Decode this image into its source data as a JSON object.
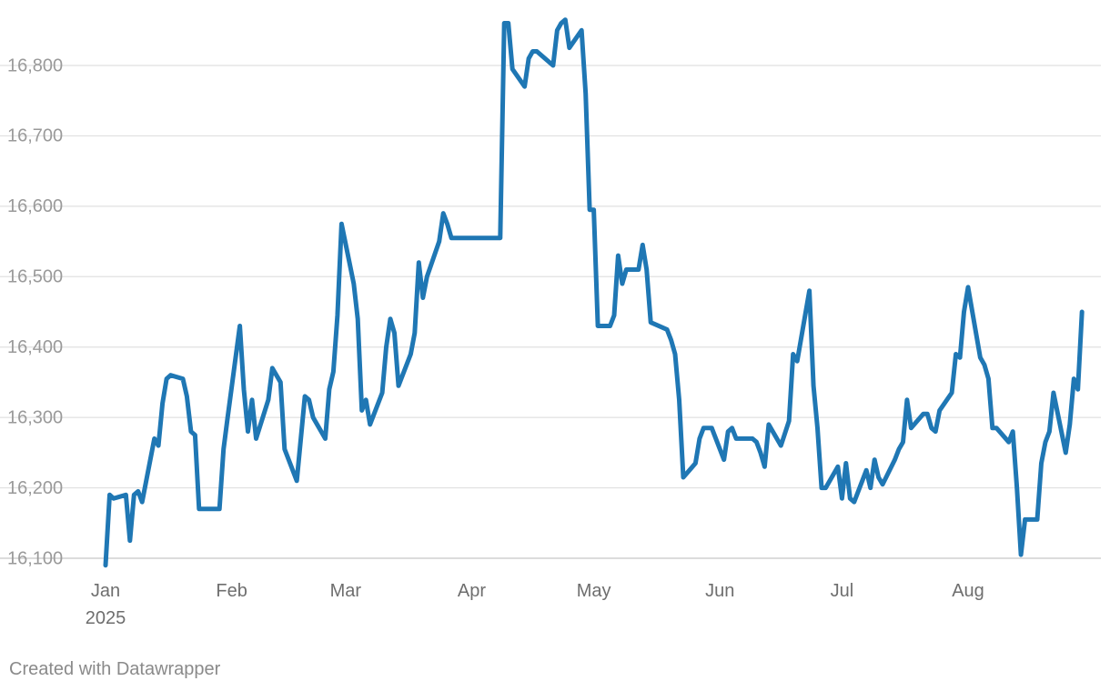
{
  "footer": {
    "credit": "Created with Datawrapper"
  },
  "colors": {
    "line": "#1f77b4",
    "grid": "#e0e0e0"
  },
  "chart_data": {
    "type": "line",
    "title": "",
    "xlabel": "",
    "ylabel": "",
    "grid": true,
    "legend": "none",
    "ylim": [
      16085,
      16870
    ],
    "xlim": [
      "2025-01-01",
      "2025-08-31"
    ],
    "y_ticks": [
      16100,
      16200,
      16300,
      16400,
      16500,
      16600,
      16700,
      16800
    ],
    "y_tick_labels": [
      "16,100",
      "16,200",
      "16,300",
      "16,400",
      "16,500",
      "16,600",
      "16,700",
      "16,800"
    ],
    "x_ticks": [
      {
        "date": "2025-01-01",
        "label": "Jan",
        "sublabel": "2025"
      },
      {
        "date": "2025-02-01",
        "label": "Feb"
      },
      {
        "date": "2025-03-01",
        "label": "Mar"
      },
      {
        "date": "2025-04-01",
        "label": "Apr"
      },
      {
        "date": "2025-05-01",
        "label": "May"
      },
      {
        "date": "2025-06-01",
        "label": "Jun"
      },
      {
        "date": "2025-07-01",
        "label": "Jul"
      },
      {
        "date": "2025-08-01",
        "label": "Aug"
      }
    ],
    "series": [
      {
        "color": "#1f77b4",
        "points": [
          [
            "2025-01-01",
            16090
          ],
          [
            "2025-01-02",
            16190
          ],
          [
            "2025-01-03",
            16185
          ],
          [
            "2025-01-06",
            16190
          ],
          [
            "2025-01-07",
            16125
          ],
          [
            "2025-01-08",
            16190
          ],
          [
            "2025-01-09",
            16195
          ],
          [
            "2025-01-10",
            16180
          ],
          [
            "2025-01-13",
            16270
          ],
          [
            "2025-01-14",
            16260
          ],
          [
            "2025-01-15",
            16320
          ],
          [
            "2025-01-16",
            16355
          ],
          [
            "2025-01-17",
            16360
          ],
          [
            "2025-01-20",
            16355
          ],
          [
            "2025-01-21",
            16330
          ],
          [
            "2025-01-22",
            16280
          ],
          [
            "2025-01-23",
            16275
          ],
          [
            "2025-01-24",
            16170
          ],
          [
            "2025-01-29",
            16170
          ],
          [
            "2025-01-30",
            16255
          ],
          [
            "2025-01-31",
            16300
          ],
          [
            "2025-02-03",
            16430
          ],
          [
            "2025-02-04",
            16340
          ],
          [
            "2025-02-05",
            16280
          ],
          [
            "2025-02-06",
            16325
          ],
          [
            "2025-02-07",
            16270
          ],
          [
            "2025-02-10",
            16325
          ],
          [
            "2025-02-11",
            16370
          ],
          [
            "2025-02-13",
            16350
          ],
          [
            "2025-02-14",
            16255
          ],
          [
            "2025-02-17",
            16210
          ],
          [
            "2025-02-19",
            16330
          ],
          [
            "2025-02-20",
            16325
          ],
          [
            "2025-02-21",
            16300
          ],
          [
            "2025-02-24",
            16270
          ],
          [
            "2025-02-25",
            16340
          ],
          [
            "2025-02-26",
            16365
          ],
          [
            "2025-02-27",
            16445
          ],
          [
            "2025-02-28",
            16575
          ],
          [
            "2025-03-03",
            16490
          ],
          [
            "2025-03-04",
            16440
          ],
          [
            "2025-03-05",
            16310
          ],
          [
            "2025-03-06",
            16325
          ],
          [
            "2025-03-07",
            16290
          ],
          [
            "2025-03-10",
            16335
          ],
          [
            "2025-03-11",
            16400
          ],
          [
            "2025-03-12",
            16440
          ],
          [
            "2025-03-13",
            16420
          ],
          [
            "2025-03-14",
            16345
          ],
          [
            "2025-03-17",
            16390
          ],
          [
            "2025-03-18",
            16420
          ],
          [
            "2025-03-19",
            16520
          ],
          [
            "2025-03-20",
            16470
          ],
          [
            "2025-03-21",
            16500
          ],
          [
            "2025-03-24",
            16550
          ],
          [
            "2025-03-25",
            16590
          ],
          [
            "2025-03-26",
            16575
          ],
          [
            "2025-03-27",
            16555
          ],
          [
            "2025-04-08",
            16555
          ],
          [
            "2025-04-09",
            16860
          ],
          [
            "2025-04-10",
            16860
          ],
          [
            "2025-04-11",
            16795
          ],
          [
            "2025-04-14",
            16770
          ],
          [
            "2025-04-15",
            16810
          ],
          [
            "2025-04-16",
            16820
          ],
          [
            "2025-04-17",
            16820
          ],
          [
            "2025-04-21",
            16800
          ],
          [
            "2025-04-22",
            16850
          ],
          [
            "2025-04-23",
            16860
          ],
          [
            "2025-04-24",
            16865
          ],
          [
            "2025-04-25",
            16825
          ],
          [
            "2025-04-28",
            16850
          ],
          [
            "2025-04-29",
            16760
          ],
          [
            "2025-04-30",
            16595
          ],
          [
            "2025-05-01",
            16595
          ],
          [
            "2025-05-02",
            16430
          ],
          [
            "2025-05-05",
            16430
          ],
          [
            "2025-05-06",
            16445
          ],
          [
            "2025-05-07",
            16530
          ],
          [
            "2025-05-08",
            16490
          ],
          [
            "2025-05-09",
            16510
          ],
          [
            "2025-05-12",
            16510
          ],
          [
            "2025-05-13",
            16545
          ],
          [
            "2025-05-14",
            16510
          ],
          [
            "2025-05-15",
            16435
          ],
          [
            "2025-05-19",
            16425
          ],
          [
            "2025-05-20",
            16410
          ],
          [
            "2025-05-21",
            16390
          ],
          [
            "2025-05-22",
            16325
          ],
          [
            "2025-05-23",
            16215
          ],
          [
            "2025-05-26",
            16235
          ],
          [
            "2025-05-27",
            16270
          ],
          [
            "2025-05-28",
            16285
          ],
          [
            "2025-05-30",
            16285
          ],
          [
            "2025-06-02",
            16240
          ],
          [
            "2025-06-03",
            16280
          ],
          [
            "2025-06-04",
            16285
          ],
          [
            "2025-06-05",
            16270
          ],
          [
            "2025-06-09",
            16270
          ],
          [
            "2025-06-10",
            16265
          ],
          [
            "2025-06-11",
            16250
          ],
          [
            "2025-06-12",
            16230
          ],
          [
            "2025-06-13",
            16290
          ],
          [
            "2025-06-16",
            16260
          ],
          [
            "2025-06-18",
            16295
          ],
          [
            "2025-06-19",
            16390
          ],
          [
            "2025-06-20",
            16380
          ],
          [
            "2025-06-23",
            16480
          ],
          [
            "2025-06-24",
            16345
          ],
          [
            "2025-06-25",
            16285
          ],
          [
            "2025-06-26",
            16200
          ],
          [
            "2025-06-27",
            16200
          ],
          [
            "2025-06-30",
            16230
          ],
          [
            "2025-07-01",
            16185
          ],
          [
            "2025-07-02",
            16235
          ],
          [
            "2025-07-03",
            16185
          ],
          [
            "2025-07-04",
            16180
          ],
          [
            "2025-07-07",
            16225
          ],
          [
            "2025-07-08",
            16200
          ],
          [
            "2025-07-09",
            16240
          ],
          [
            "2025-07-10",
            16215
          ],
          [
            "2025-07-11",
            16205
          ],
          [
            "2025-07-14",
            16240
          ],
          [
            "2025-07-15",
            16255
          ],
          [
            "2025-07-16",
            16265
          ],
          [
            "2025-07-17",
            16325
          ],
          [
            "2025-07-18",
            16285
          ],
          [
            "2025-07-21",
            16305
          ],
          [
            "2025-07-22",
            16305
          ],
          [
            "2025-07-23",
            16285
          ],
          [
            "2025-07-24",
            16280
          ],
          [
            "2025-07-25",
            16310
          ],
          [
            "2025-07-28",
            16335
          ],
          [
            "2025-07-29",
            16390
          ],
          [
            "2025-07-30",
            16385
          ],
          [
            "2025-07-31",
            16450
          ],
          [
            "2025-08-01",
            16485
          ],
          [
            "2025-08-04",
            16385
          ],
          [
            "2025-08-05",
            16375
          ],
          [
            "2025-08-06",
            16355
          ],
          [
            "2025-08-07",
            16285
          ],
          [
            "2025-08-08",
            16285
          ],
          [
            "2025-08-11",
            16265
          ],
          [
            "2025-08-12",
            16280
          ],
          [
            "2025-08-13",
            16200
          ],
          [
            "2025-08-14",
            16105
          ],
          [
            "2025-08-15",
            16155
          ],
          [
            "2025-08-18",
            16155
          ],
          [
            "2025-08-19",
            16235
          ],
          [
            "2025-08-20",
            16265
          ],
          [
            "2025-08-21",
            16280
          ],
          [
            "2025-08-22",
            16335
          ],
          [
            "2025-08-25",
            16250
          ],
          [
            "2025-08-26",
            16290
          ],
          [
            "2025-08-27",
            16355
          ],
          [
            "2025-08-28",
            16340
          ],
          [
            "2025-08-29",
            16450
          ]
        ]
      }
    ]
  }
}
